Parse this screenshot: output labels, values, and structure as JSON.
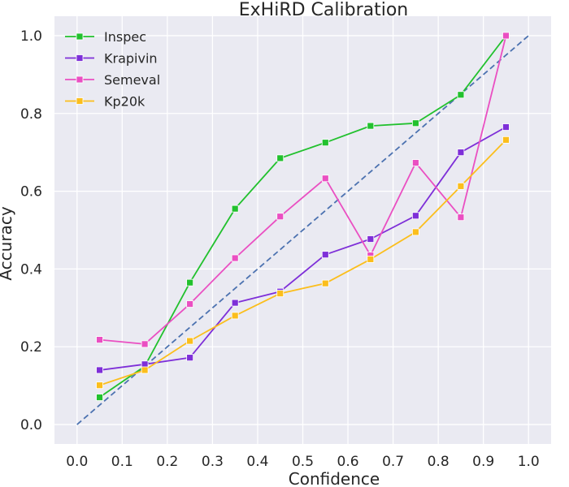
{
  "chart_data": {
    "type": "line",
    "title": "ExHiRD Calibration",
    "xlabel": "Confidence",
    "ylabel": "Accuracy",
    "xlim": [
      -0.05,
      1.05
    ],
    "ylim": [
      -0.05,
      1.05
    ],
    "xticks": [
      "0.0",
      "0.1",
      "0.2",
      "0.3",
      "0.4",
      "0.5",
      "0.6",
      "0.7",
      "0.8",
      "0.9",
      "1.0"
    ],
    "yticks": [
      "0.0",
      "0.2",
      "0.4",
      "0.6",
      "0.8",
      "1.0"
    ],
    "grid": true,
    "legend_position": "top-left",
    "x": [
      0.05,
      0.15,
      0.25,
      0.35,
      0.45,
      0.55,
      0.65,
      0.75,
      0.85,
      0.95
    ],
    "series": [
      {
        "name": "Inspec",
        "color": "#22c12e",
        "values": [
          0.07,
          0.15,
          0.365,
          0.555,
          0.685,
          0.725,
          0.768,
          0.775,
          0.848,
          1.0
        ]
      },
      {
        "name": "Krapivin",
        "color": "#7e2fd8",
        "values": [
          0.14,
          0.155,
          0.172,
          0.313,
          0.342,
          0.437,
          0.477,
          0.537,
          0.7,
          0.765
        ]
      },
      {
        "name": "Semeval",
        "color": "#ea4fc2",
        "values": [
          0.218,
          0.207,
          0.31,
          0.428,
          0.535,
          0.633,
          0.435,
          0.673,
          0.533,
          1.0
        ]
      },
      {
        "name": "Kp20k",
        "color": "#fbbe1c",
        "values": [
          0.101,
          0.14,
          0.215,
          0.28,
          0.337,
          0.363,
          0.425,
          0.495,
          0.613,
          0.732
        ]
      }
    ],
    "reference_line": {
      "color": "#4c72b0",
      "style": "dashed",
      "from": [
        0,
        0
      ],
      "to": [
        1,
        1
      ]
    }
  }
}
